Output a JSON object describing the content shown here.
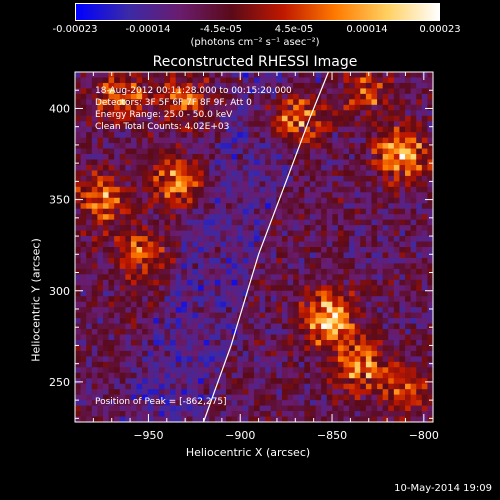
{
  "colorbar": {
    "ticks": [
      "-0.00023",
      "-0.00014",
      "-4.5e-05",
      "4.5e-05",
      "0.00014",
      "0.00023"
    ],
    "unit": "(photons cm⁻² s⁻¹ asec⁻²)",
    "colors": [
      "#0000ff",
      "#3a2aa8",
      "#6a1c6e",
      "#5a0a18",
      "#c01800",
      "#ff7a00",
      "#ffd060",
      "#ffffff"
    ]
  },
  "chart_data": {
    "type": "heatmap",
    "title": "Reconstructed RHESSI Image",
    "xlabel": "Heliocentric X (arcsec)",
    "ylabel": "Heliocentric Y (arcsec)",
    "xlim": [
      -990,
      -795
    ],
    "ylim": [
      228,
      420
    ],
    "xticks": [
      -950,
      -900,
      -850,
      -800
    ],
    "yticks": [
      250,
      300,
      350,
      400
    ],
    "xtick_labels": [
      "−950",
      "−900",
      "−850",
      "−800"
    ],
    "ytick_labels": [
      "250",
      "300",
      "350",
      "400"
    ],
    "colorbar_range": [
      -0.00023,
      0.00023
    ],
    "limb_curve": [
      [
        -920,
        228
      ],
      [
        -905,
        270
      ],
      [
        -890,
        320
      ],
      [
        -875,
        360
      ],
      [
        -862,
        395
      ],
      [
        -852,
        420
      ]
    ],
    "bright_regions": [
      {
        "x": -852,
        "y": 285,
        "intensity": 0.00023
      },
      {
        "x": -870,
        "y": 395,
        "intensity": 0.0002
      },
      {
        "x": -812,
        "y": 375,
        "intensity": 0.00018
      },
      {
        "x": -935,
        "y": 360,
        "intensity": 0.00016
      },
      {
        "x": -975,
        "y": 350,
        "intensity": 0.00015
      },
      {
        "x": -955,
        "y": 320,
        "intensity": 0.00013
      },
      {
        "x": -965,
        "y": 405,
        "intensity": 0.00014
      },
      {
        "x": -930,
        "y": 405,
        "intensity": 0.00012
      },
      {
        "x": -835,
        "y": 258,
        "intensity": 0.00016
      },
      {
        "x": -810,
        "y": 245,
        "intensity": 0.00012
      },
      {
        "x": -830,
        "y": 410,
        "intensity": 0.00011
      }
    ],
    "peak_position": [
      -862,
      275
    ]
  },
  "info": {
    "line1": "18-Aug-2012 00:11:28.000 to 00:15:20.000",
    "line2": "Detectors: 3F 5F 6F 7F 8F 9F, Att 0",
    "line3": "Energy Range: 25.0 - 50.0 keV",
    "line4": "Clean     Total Counts: 4.02E+03",
    "peak": "Position of Peak = [-862,275]"
  },
  "footer": "10-May-2014 19:09"
}
